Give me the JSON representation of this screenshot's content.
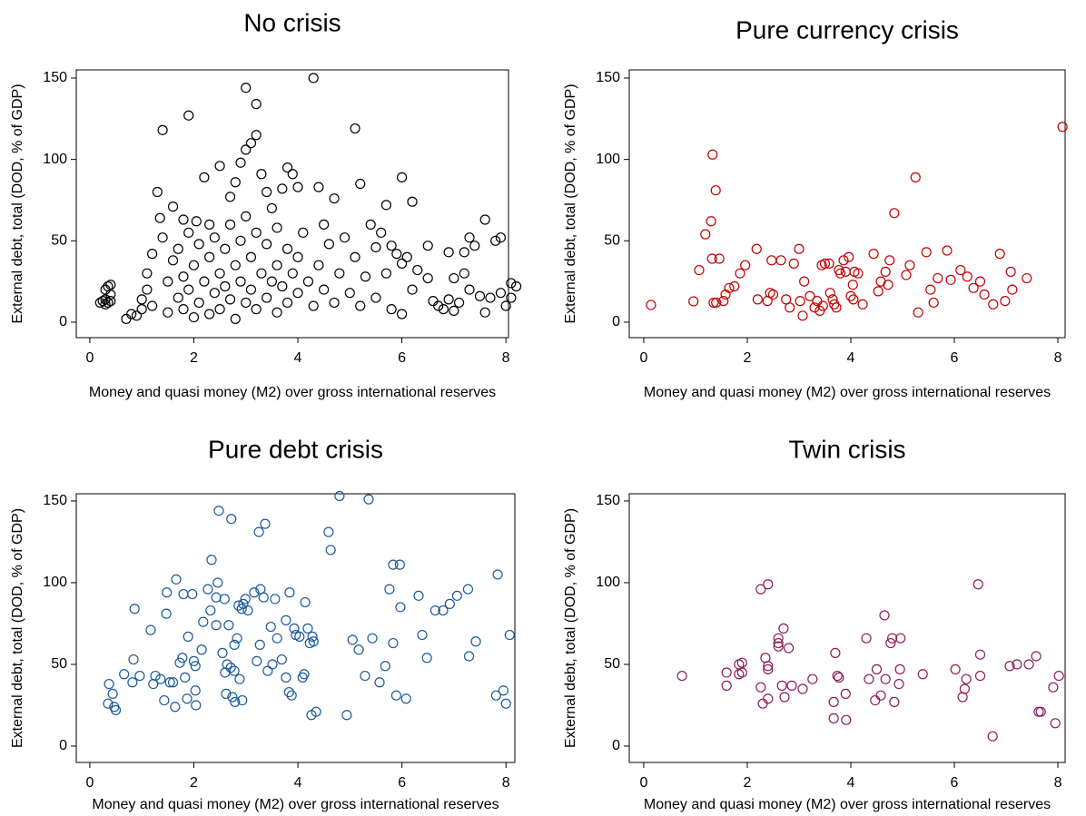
{
  "chart_data": [
    {
      "type": "scatter",
      "title": "No crisis",
      "x_label": "Money and quasi money (M2) over gross international reserves",
      "y_label": "External debt, total (DOD, % of GDP)",
      "color": "#000000",
      "xlim": [
        -0.26,
        8.05
      ],
      "ylim": [
        -9.5,
        155
      ],
      "xticks": [
        0,
        2,
        4,
        6,
        8
      ],
      "yticks": [
        0,
        50,
        100,
        150
      ],
      "x": [
        0.2,
        0.25,
        0.3,
        0.3,
        0.35,
        0.3,
        0.35,
        0.4,
        0.4,
        0.4,
        0.7,
        0.8,
        0.9,
        1.0,
        1.0,
        1.1,
        1.1,
        1.2,
        1.2,
        1.3,
        1.35,
        1.4,
        1.4,
        1.5,
        1.5,
        1.6,
        1.6,
        1.7,
        1.7,
        1.8,
        1.8,
        1.8,
        1.9,
        1.9,
        1.9,
        2.0,
        2.0,
        2.05,
        2.1,
        2.1,
        2.2,
        2.2,
        2.3,
        2.3,
        2.3,
        2.4,
        2.4,
        2.5,
        2.5,
        2.5,
        2.6,
        2.6,
        2.7,
        2.7,
        2.7,
        2.8,
        2.8,
        2.8,
        2.9,
        2.9,
        2.9,
        3.0,
        3.0,
        3.0,
        3.0,
        3.1,
        3.1,
        3.1,
        3.2,
        3.2,
        3.2,
        3.2,
        3.3,
        3.3,
        3.4,
        3.4,
        3.4,
        3.5,
        3.5,
        3.6,
        3.6,
        3.6,
        3.7,
        3.7,
        3.8,
        3.8,
        3.8,
        3.9,
        3.9,
        4.0,
        4.0,
        4.0,
        4.1,
        4.2,
        4.3,
        4.3,
        4.4,
        4.4,
        4.5,
        4.5,
        4.6,
        4.7,
        4.7,
        4.8,
        4.9,
        5.0,
        5.1,
        5.1,
        5.2,
        5.2,
        5.3,
        5.4,
        5.5,
        5.5,
        5.6,
        5.7,
        5.7,
        5.8,
        5.8,
        5.9,
        6.0,
        6.0,
        6.0,
        6.1,
        6.2,
        6.2,
        6.3,
        6.5,
        6.5,
        6.6,
        6.7,
        6.8,
        6.9,
        6.9,
        7.0,
        7.0,
        7.1,
        7.2,
        7.2,
        7.3,
        7.3,
        7.4,
        7.5,
        7.6,
        7.6,
        7.7,
        7.8,
        7.9,
        7.9,
        8.0,
        8.1,
        8.1,
        8.2
      ],
      "values": [
        12,
        13,
        11,
        14,
        12,
        20,
        22,
        23,
        17,
        13,
        2,
        5,
        4,
        8,
        14,
        20,
        30,
        42,
        10,
        80,
        64,
        118,
        52,
        25,
        6,
        71,
        38,
        15,
        45,
        63,
        28,
        8,
        127,
        55,
        20,
        35,
        3,
        62,
        48,
        12,
        89,
        25,
        60,
        40,
        5,
        18,
        52,
        96,
        30,
        8,
        45,
        22,
        77,
        60,
        14,
        86,
        35,
        2,
        98,
        50,
        25,
        144,
        106,
        65,
        12,
        110,
        40,
        20,
        134,
        115,
        55,
        8,
        91,
        30,
        80,
        48,
        15,
        70,
        25,
        58,
        35,
        6,
        82,
        22,
        95,
        45,
        12,
        91,
        30,
        83,
        40,
        18,
        55,
        25,
        150,
        10,
        83,
        35,
        60,
        20,
        48,
        76,
        12,
        30,
        52,
        18,
        119,
        40,
        85,
        10,
        28,
        60,
        46,
        15,
        55,
        72,
        30,
        47,
        8,
        42,
        89,
        36,
        5,
        40,
        74,
        20,
        32,
        47,
        27,
        13,
        10,
        8,
        43,
        14,
        27,
        7,
        12,
        43,
        30,
        52,
        20,
        47,
        16,
        63,
        6,
        15,
        50,
        52,
        18,
        10,
        24,
        15,
        22
      ]
    },
    {
      "type": "scatter",
      "title": "Pure currency crisis",
      "x_label": "Money and quasi money (M2) over gross international reserves",
      "y_label": "External debt, total (DOD, % of GDP)",
      "color": "#c00000",
      "xlim": [
        -0.28,
        8.14
      ],
      "ylim": [
        -9.5,
        155
      ],
      "xticks": [
        0,
        2,
        4,
        6,
        8
      ],
      "yticks": [
        0,
        50,
        100,
        150
      ],
      "x": [
        0.14,
        0.96,
        1.07,
        1.19,
        1.3,
        1.33,
        1.39,
        1.32,
        1.35,
        1.4,
        1.46,
        1.54,
        1.58,
        1.65,
        1.75,
        1.86,
        1.96,
        2.18,
        2.2,
        2.39,
        2.44,
        2.47,
        2.5,
        2.65,
        2.75,
        2.82,
        2.9,
        3.0,
        3.02,
        3.1,
        3.07,
        3.21,
        3.3,
        3.35,
        3.4,
        3.46,
        3.44,
        3.5,
        3.58,
        3.6,
        3.65,
        3.68,
        3.72,
        3.77,
        3.8,
        3.86,
        3.9,
        3.96,
        4.0,
        4.04,
        4.05,
        4.07,
        4.14,
        4.23,
        4.44,
        4.53,
        4.58,
        4.67,
        4.72,
        4.75,
        4.84,
        5.07,
        5.14,
        5.25,
        5.3,
        5.46,
        5.54,
        5.6,
        5.68,
        5.86,
        5.93,
        6.12,
        6.25,
        6.37,
        6.5,
        6.58,
        6.75,
        6.88,
        6.98,
        7.09,
        7.12,
        7.4,
        8.09
      ],
      "values": [
        10.6,
        12.8,
        32,
        54,
        62,
        103,
        81,
        39,
        12,
        12,
        39,
        13,
        17,
        21,
        22,
        30,
        35,
        45,
        14,
        13,
        18,
        38,
        17,
        38,
        14,
        9,
        36,
        45,
        13,
        25,
        4,
        16,
        9,
        13,
        7,
        10,
        35,
        36,
        36,
        18,
        14,
        11,
        9,
        32,
        30,
        38,
        31,
        40,
        16,
        23,
        14,
        31,
        30,
        11,
        42,
        19,
        25,
        31,
        23,
        38,
        67,
        29,
        35,
        89,
        6,
        43,
        20,
        12,
        27,
        44,
        26,
        32,
        28,
        21,
        25,
        17,
        11,
        42,
        13,
        31,
        20,
        27,
        120
      ]
    },
    {
      "type": "scatter",
      "title": "Pure debt crisis",
      "x_label": "Money and quasi money (M2) over gross international reserves",
      "y_label": "External debt, total (DOD, % of GDP)",
      "color": "#1a5a9a",
      "xlim": [
        -0.26,
        8.17
      ],
      "ylim": [
        -10,
        154.4
      ],
      "xticks": [
        0,
        2,
        4,
        6,
        8
      ],
      "yticks": [
        0,
        50,
        100,
        150
      ],
      "x": [
        0.37,
        0.44,
        0.47,
        0.5,
        0.35,
        0.66,
        0.82,
        0.84,
        0.86,
        0.96,
        1.17,
        1.22,
        1.26,
        1.36,
        1.43,
        1.47,
        1.48,
        1.54,
        1.6,
        1.66,
        1.64,
        1.73,
        1.78,
        1.8,
        1.83,
        1.87,
        1.89,
        1.97,
        2.0,
        2.03,
        2.04,
        2.03,
        2.15,
        2.18,
        2.27,
        2.32,
        2.34,
        2.43,
        2.43,
        2.46,
        2.48,
        2.55,
        2.59,
        2.6,
        2.62,
        2.64,
        2.67,
        2.71,
        2.72,
        2.74,
        2.78,
        2.78,
        2.79,
        2.83,
        2.86,
        2.88,
        2.92,
        2.93,
        2.95,
        2.99,
        3.04,
        3.16,
        3.21,
        3.25,
        3.27,
        3.28,
        3.34,
        3.37,
        3.42,
        3.48,
        3.51,
        3.56,
        3.6,
        3.69,
        3.77,
        3.84,
        3.77,
        3.83,
        3.88,
        3.93,
        3.96,
        4.03,
        4.09,
        4.12,
        4.14,
        4.19,
        4.23,
        4.26,
        4.28,
        4.3,
        4.35,
        4.59,
        4.63,
        4.8,
        4.94,
        5.05,
        5.17,
        5.29,
        5.36,
        5.43,
        5.57,
        5.68,
        5.76,
        5.83,
        5.83,
        5.89,
        5.96,
        5.97,
        6.08,
        6.32,
        6.39,
        6.48,
        6.64,
        6.79,
        6.92,
        7.06,
        7.27,
        7.29,
        7.42,
        7.81,
        7.84,
        7.95,
        8.0,
        8.07
      ],
      "values": [
        38,
        32,
        24,
        22,
        26,
        44,
        39,
        53,
        84,
        43,
        71,
        38,
        43,
        41,
        28,
        81,
        94,
        39,
        39,
        102,
        24,
        51,
        54,
        93,
        42,
        29,
        67,
        93,
        52,
        34,
        25,
        49,
        59,
        76,
        96,
        83,
        114,
        74,
        91,
        100,
        144,
        57,
        90,
        45,
        32,
        50,
        74,
        48,
        139,
        30,
        62,
        46,
        27,
        66,
        86,
        41,
        84,
        28,
        87,
        90,
        83,
        94,
        52,
        131,
        62,
        96,
        91,
        136,
        46,
        73,
        50,
        90,
        66,
        53,
        77,
        94,
        42,
        33,
        31,
        72,
        68,
        67,
        42,
        44,
        88,
        72,
        63,
        19,
        67,
        64,
        21,
        131,
        120,
        153,
        19,
        65,
        59,
        43,
        151,
        66,
        39,
        49,
        96,
        63,
        111,
        31,
        111,
        85,
        29,
        92,
        68,
        54,
        83,
        83,
        87,
        92,
        96,
        55,
        64,
        31,
        105,
        34,
        26,
        68
      ]
    },
    {
      "type": "scatter",
      "title": "Twin crisis",
      "x_label": "Money and quasi money (M2) over gross international reserves",
      "y_label": "External debt, total (DOD, % of GDP)",
      "color": "#8c1c5a",
      "xlim": [
        -0.28,
        8.14
      ],
      "ylim": [
        -10,
        154.4
      ],
      "xticks": [
        0,
        2,
        4,
        6,
        8
      ],
      "yticks": [
        0,
        50,
        100,
        150
      ],
      "x": [
        0.74,
        1.6,
        1.6,
        1.84,
        1.9,
        1.84,
        1.9,
        2.26,
        2.4,
        2.26,
        2.3,
        2.35,
        2.4,
        2.4,
        2.4,
        2.6,
        2.6,
        2.6,
        2.7,
        2.67,
        2.72,
        2.8,
        2.86,
        3.07,
        3.26,
        3.67,
        3.67,
        3.7,
        3.74,
        3.77,
        3.9,
        3.91,
        4.3,
        4.35,
        4.47,
        4.5,
        4.58,
        4.65,
        4.67,
        4.77,
        4.8,
        4.84,
        4.96,
        4.95,
        4.93,
        5.39,
        6.02,
        6.16,
        6.2,
        6.23,
        6.5,
        6.46,
        6.5,
        6.74,
        7.07,
        7.21,
        7.44,
        7.58,
        7.63,
        7.67,
        7.91,
        7.95,
        8.02
      ],
      "values": [
        43,
        37,
        45,
        50,
        51,
        44,
        45,
        96,
        99,
        36,
        26,
        54,
        49,
        47,
        29,
        66,
        63,
        61,
        72,
        37,
        30,
        60,
        37,
        35,
        41,
        27,
        17,
        57,
        43,
        42,
        32,
        16,
        66,
        41,
        28,
        47,
        31,
        80,
        41,
        63,
        66,
        27,
        66,
        47,
        38,
        44,
        47,
        30,
        35,
        41,
        43,
        99,
        56,
        6,
        49,
        50,
        50,
        55,
        21,
        21,
        36,
        14,
        43
      ]
    }
  ]
}
